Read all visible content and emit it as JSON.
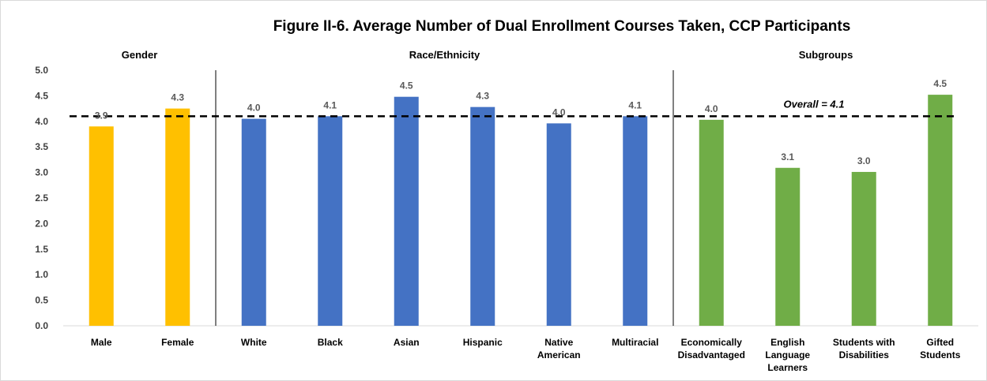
{
  "chart_data": {
    "type": "bar",
    "title": "Figure II-6. Average Number of Dual Enrollment Courses Taken, CCP Participants",
    "ylim": [
      0,
      5
    ],
    "ytick_step": 0.5,
    "yticks": [
      "0.0",
      "0.5",
      "1.0",
      "1.5",
      "2.0",
      "2.5",
      "3.0",
      "3.5",
      "4.0",
      "4.5",
      "5.0"
    ],
    "grid": false,
    "legend": "none",
    "groups": [
      {
        "name": "Gender",
        "color": "#FFC000",
        "start": 0,
        "count": 2
      },
      {
        "name": "Race/Ethnicity",
        "color": "#4472C4",
        "start": 2,
        "count": 6
      },
      {
        "name": "Subgroups",
        "color": "#70AD47",
        "start": 8,
        "count": 4
      }
    ],
    "categories": [
      [
        "Male"
      ],
      [
        "Female"
      ],
      [
        "White"
      ],
      [
        "Black"
      ],
      [
        "Asian"
      ],
      [
        "Hispanic"
      ],
      [
        "Native",
        "American"
      ],
      [
        "Multiracial"
      ],
      [
        "Economically",
        "Disadvantaged"
      ],
      [
        "English",
        "Language",
        "Learners"
      ],
      [
        "Students with",
        "Disabilities"
      ],
      [
        "Gifted",
        "Students"
      ]
    ],
    "values": [
      3.9,
      4.25,
      4.05,
      4.1,
      4.48,
      4.28,
      3.96,
      4.1,
      4.03,
      3.09,
      3.01,
      4.52
    ],
    "data_labels": [
      "3.9",
      "4.3",
      "4.0",
      "4.1",
      "4.5",
      "4.3",
      "4.0",
      "4.1",
      "4.0",
      "3.1",
      "3.0",
      "4.5"
    ],
    "reference_line": {
      "value": 4.1,
      "label": "Overall = 4.1",
      "style": "dashed",
      "color": "#000000"
    }
  }
}
